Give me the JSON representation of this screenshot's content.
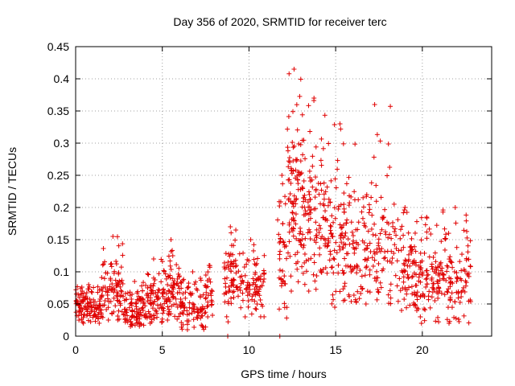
{
  "chart_data": {
    "type": "scatter",
    "title": "Day 356 of 2020, SRMTID for receiver terc",
    "xlabel": "GPS time / hours",
    "ylabel": "SRMTID / TECUs",
    "xlim": [
      0,
      24
    ],
    "ylim": [
      0,
      0.45
    ],
    "x_ticks": [
      0,
      5,
      10,
      15,
      20
    ],
    "x_tick_labels": [
      "0",
      "5",
      "10",
      "15",
      "20"
    ],
    "y_ticks": [
      0,
      0.05,
      0.1,
      0.15,
      0.2,
      0.25,
      0.3,
      0.35,
      0.4,
      0.45
    ],
    "y_tick_labels": [
      "0",
      "0.05",
      "0.1",
      "0.15",
      "0.2",
      "0.25",
      "0.3",
      "0.35",
      "0.4",
      "0.45"
    ],
    "grid": true,
    "marker": "plus",
    "color": "#e00000",
    "series_profile": [
      {
        "x_start": 0.0,
        "x_end": 1.5,
        "median": 0.045,
        "spread": 0.015,
        "max": 0.08,
        "min": 0.02,
        "density": 120
      },
      {
        "x_start": 1.5,
        "x_end": 2.8,
        "median": 0.07,
        "spread": 0.025,
        "max": 0.155,
        "min": 0.025,
        "density": 90
      },
      {
        "x_start": 2.8,
        "x_end": 4.0,
        "median": 0.04,
        "spread": 0.015,
        "max": 0.085,
        "min": 0.015,
        "density": 90
      },
      {
        "x_start": 4.0,
        "x_end": 5.0,
        "median": 0.055,
        "spread": 0.02,
        "max": 0.12,
        "min": 0.02,
        "density": 70
      },
      {
        "x_start": 5.0,
        "x_end": 6.0,
        "median": 0.07,
        "spread": 0.025,
        "max": 0.15,
        "min": 0.025,
        "density": 80
      },
      {
        "x_start": 6.0,
        "x_end": 7.5,
        "median": 0.045,
        "spread": 0.02,
        "max": 0.1,
        "min": 0.01,
        "density": 90
      },
      {
        "x_start": 7.5,
        "x_end": 7.9,
        "median": 0.065,
        "spread": 0.02,
        "max": 0.11,
        "min": 0.03,
        "density": 25
      },
      {
        "x_start": 8.55,
        "x_end": 9.3,
        "median": 0.09,
        "spread": 0.035,
        "max": 0.17,
        "min": 0.0,
        "density": 60
      },
      {
        "x_start": 9.3,
        "x_end": 10.9,
        "median": 0.08,
        "spread": 0.025,
        "max": 0.15,
        "min": 0.03,
        "density": 90
      },
      {
        "x_start": 11.6,
        "x_end": 12.2,
        "median": 0.12,
        "spread": 0.05,
        "max": 0.25,
        "min": 0.0,
        "density": 40
      },
      {
        "x_start": 12.2,
        "x_end": 13.0,
        "median": 0.21,
        "spread": 0.06,
        "max": 0.415,
        "min": 0.07,
        "density": 90
      },
      {
        "x_start": 13.0,
        "x_end": 14.5,
        "median": 0.19,
        "spread": 0.06,
        "max": 0.37,
        "min": 0.07,
        "density": 120
      },
      {
        "x_start": 14.5,
        "x_end": 16.0,
        "median": 0.15,
        "spread": 0.05,
        "max": 0.33,
        "min": 0.045,
        "density": 110
      },
      {
        "x_start": 16.0,
        "x_end": 18.5,
        "median": 0.13,
        "spread": 0.05,
        "max": 0.36,
        "min": 0.05,
        "density": 150
      },
      {
        "x_start": 18.5,
        "x_end": 19.5,
        "median": 0.1,
        "spread": 0.035,
        "max": 0.2,
        "min": 0.04,
        "density": 60
      },
      {
        "x_start": 19.5,
        "x_end": 21.0,
        "median": 0.085,
        "spread": 0.03,
        "max": 0.185,
        "min": 0.02,
        "density": 110
      },
      {
        "x_start": 21.0,
        "x_end": 22.8,
        "median": 0.09,
        "spread": 0.03,
        "max": 0.2,
        "min": 0.02,
        "density": 110
      }
    ]
  }
}
